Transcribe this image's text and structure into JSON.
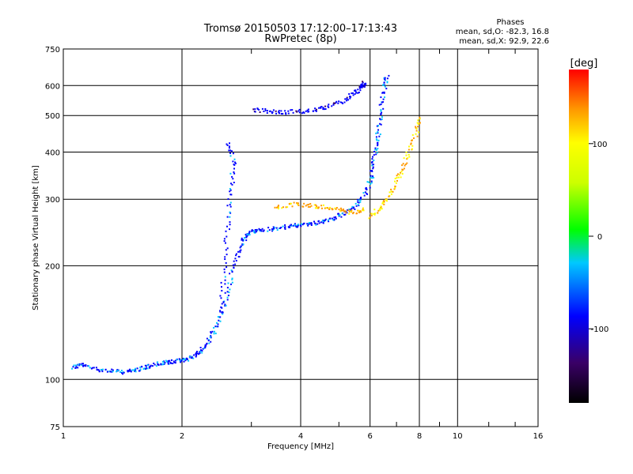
{
  "chart_data": {
    "type": "scatter",
    "title": "Tromsø 20150503 17:12:00–17:13:43",
    "subtitle": "RwPretec (8p)",
    "info": {
      "heading": "Phases",
      "line_o": "mean, sd,O:  -82.3, 16.8",
      "line_x": "mean, sd,X:   92.9, 22.6"
    },
    "xlabel": "Frequency [MHz]",
    "ylabel": "Stationary phase Virtual Height [km]",
    "x_scale": "log",
    "y_scale": "log",
    "xlim": [
      1,
      16
    ],
    "ylim": [
      75,
      750
    ],
    "x_ticks": [
      1,
      2,
      4,
      6,
      8,
      10,
      16
    ],
    "x_tick_labels": [
      "1",
      "2",
      "4",
      "6",
      "8",
      "10",
      "16"
    ],
    "y_ticks": [
      75,
      100,
      200,
      300,
      400,
      500,
      600,
      750
    ],
    "y_tick_labels": [
      "75",
      "100",
      "200",
      "300",
      "400",
      "500",
      "600",
      "750"
    ],
    "grid": true,
    "colorbar": {
      "label": "[deg]",
      "range": [
        -180,
        180
      ],
      "ticks": [
        -100,
        0,
        100
      ],
      "tick_labels": [
        "-100",
        "0",
        "100"
      ],
      "placement": "right"
    },
    "traces": [
      {
        "desc": "low O-trace",
        "points": [
          [
            1.05,
            108
          ],
          [
            1.1,
            110
          ],
          [
            1.2,
            107
          ],
          [
            1.3,
            106
          ],
          [
            1.4,
            105
          ],
          [
            1.5,
            106
          ],
          [
            1.6,
            108
          ],
          [
            1.7,
            110
          ],
          [
            1.8,
            111
          ],
          [
            1.9,
            112
          ],
          [
            2.0,
            113
          ],
          [
            2.1,
            115
          ],
          [
            2.2,
            118
          ],
          [
            2.3,
            125
          ],
          [
            2.4,
            135
          ],
          [
            2.5,
            150
          ],
          [
            2.6,
            170
          ],
          [
            2.7,
            200
          ],
          [
            2.8,
            225
          ],
          [
            2.9,
            240
          ],
          [
            3.0,
            248
          ],
          [
            3.2,
            250
          ],
          [
            3.5,
            253
          ],
          [
            3.8,
            256
          ],
          [
            4.0,
            258
          ],
          [
            4.3,
            260
          ],
          [
            4.6,
            265
          ],
          [
            4.9,
            270
          ],
          [
            5.2,
            278
          ],
          [
            5.5,
            290
          ],
          [
            5.8,
            310
          ],
          [
            6.0,
            340
          ],
          [
            6.1,
            380
          ],
          [
            6.2,
            420
          ],
          [
            6.3,
            470
          ],
          [
            6.4,
            530
          ],
          [
            6.5,
            600
          ],
          [
            6.6,
            640
          ]
        ],
        "phase": -100
      },
      {
        "desc": "upper O-trace",
        "points": [
          [
            3.0,
            520
          ],
          [
            3.3,
            515
          ],
          [
            3.6,
            512
          ],
          [
            4.0,
            515
          ],
          [
            4.4,
            520
          ],
          [
            4.8,
            535
          ],
          [
            5.2,
            555
          ],
          [
            5.5,
            580
          ],
          [
            5.7,
            600
          ],
          [
            5.8,
            615
          ]
        ],
        "phase": -120
      },
      {
        "desc": "X-trace",
        "points": [
          [
            6.0,
            270
          ],
          [
            6.3,
            285
          ],
          [
            6.6,
            300
          ],
          [
            6.9,
            330
          ],
          [
            7.2,
            360
          ],
          [
            7.5,
            400
          ],
          [
            7.8,
            450
          ],
          [
            8.0,
            500
          ]
        ],
        "phase": 95
      },
      {
        "desc": "mixed band",
        "points": [
          [
            3.4,
            285
          ],
          [
            3.8,
            292
          ],
          [
            4.2,
            290
          ],
          [
            4.6,
            288
          ],
          [
            5.0,
            282
          ],
          [
            5.4,
            278
          ],
          [
            5.8,
            285
          ]
        ],
        "phase": 110
      },
      {
        "desc": "column near 2.6 MHz",
        "points": [
          [
            2.5,
            150
          ],
          [
            2.55,
            200
          ],
          [
            2.6,
            260
          ],
          [
            2.65,
            320
          ],
          [
            2.7,
            380
          ],
          [
            2.6,
            430
          ]
        ],
        "phase": -110
      }
    ]
  }
}
